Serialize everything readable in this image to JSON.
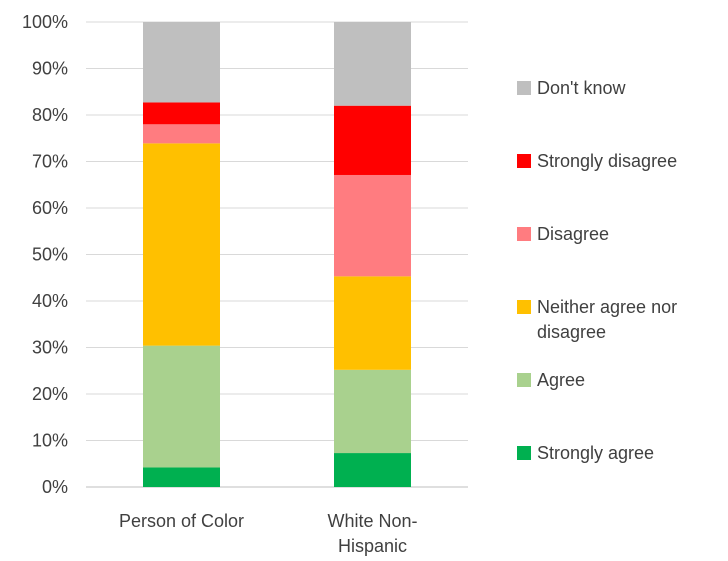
{
  "chart_data": {
    "type": "bar",
    "stacked": true,
    "percent": true,
    "categories": [
      [
        "Person of Color"
      ],
      [
        "White Non-",
        "Hispanic"
      ]
    ],
    "ylim": [
      0,
      100
    ],
    "yticks": [
      "0%",
      "10%",
      "20%",
      "30%",
      "40%",
      "50%",
      "60%",
      "70%",
      "80%",
      "90%",
      "100%"
    ],
    "grid": true,
    "legend_position": "right",
    "series": [
      {
        "name": "Strongly agree",
        "color": "#00b050",
        "values": [
          4.2,
          7.3
        ]
      },
      {
        "name": "Agree",
        "color": "#a9d18e",
        "values": [
          26.2,
          17.9
        ]
      },
      {
        "name": "Neither agree nor disagree",
        "legend_lines": [
          "Neither agree nor",
          "disagree"
        ],
        "color": "#ffc000",
        "values": [
          43.5,
          20.1
        ]
      },
      {
        "name": "Disagree",
        "color": "#ff7c80",
        "values": [
          4.1,
          21.8
        ]
      },
      {
        "name": "Strongly disagree",
        "color": "#ff0000",
        "values": [
          4.7,
          14.9
        ]
      },
      {
        "name": "Don't know",
        "color": "#bfbfbf",
        "values": [
          17.3,
          18.0
        ]
      }
    ]
  }
}
